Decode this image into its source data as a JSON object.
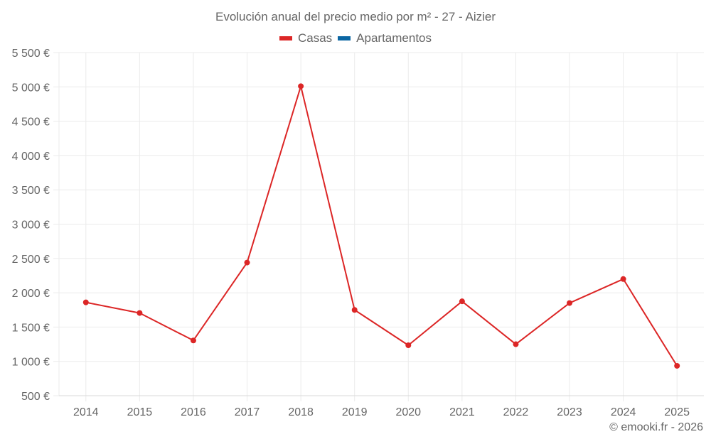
{
  "title": "Evolución anual del precio medio por m² - 27 - Aizier",
  "legend": [
    {
      "label": "Casas",
      "color": "#dc2626"
    },
    {
      "label": "Apartamentos",
      "color": "#0b66a3"
    }
  ],
  "credit": "© emooki.fr - 2026",
  "colors": {
    "grid": "#ebebeb",
    "axis": "#d9d9d9",
    "line": "#dc2626",
    "text": "#666666"
  },
  "chart_data": {
    "type": "line",
    "title": "Evolución anual del precio medio por m² - 27 - Aizier",
    "xlabel": "",
    "ylabel": "",
    "categories": [
      "2014",
      "2015",
      "2016",
      "2017",
      "2018",
      "2019",
      "2020",
      "2021",
      "2022",
      "2023",
      "2024",
      "2025"
    ],
    "series": [
      {
        "name": "Casas",
        "color": "#dc2626",
        "values": [
          1860,
          1705,
          1305,
          2440,
          5010,
          1750,
          1235,
          1875,
          1250,
          1850,
          2200,
          935
        ]
      },
      {
        "name": "Apartamentos",
        "color": "#0b66a3",
        "values": []
      }
    ],
    "ylim": [
      500,
      5500
    ],
    "yticks": [
      500,
      1000,
      1500,
      2000,
      2500,
      3000,
      3500,
      4000,
      4500,
      5000,
      5500
    ],
    "ytick_labels": [
      "500 €",
      "1 000 €",
      "1 500 €",
      "2 000 €",
      "2 500 €",
      "3 000 €",
      "3 500 €",
      "4 000 €",
      "4 500 €",
      "5 000 €",
      "5 500 €"
    ],
    "grid": true,
    "legend_position": "top"
  }
}
